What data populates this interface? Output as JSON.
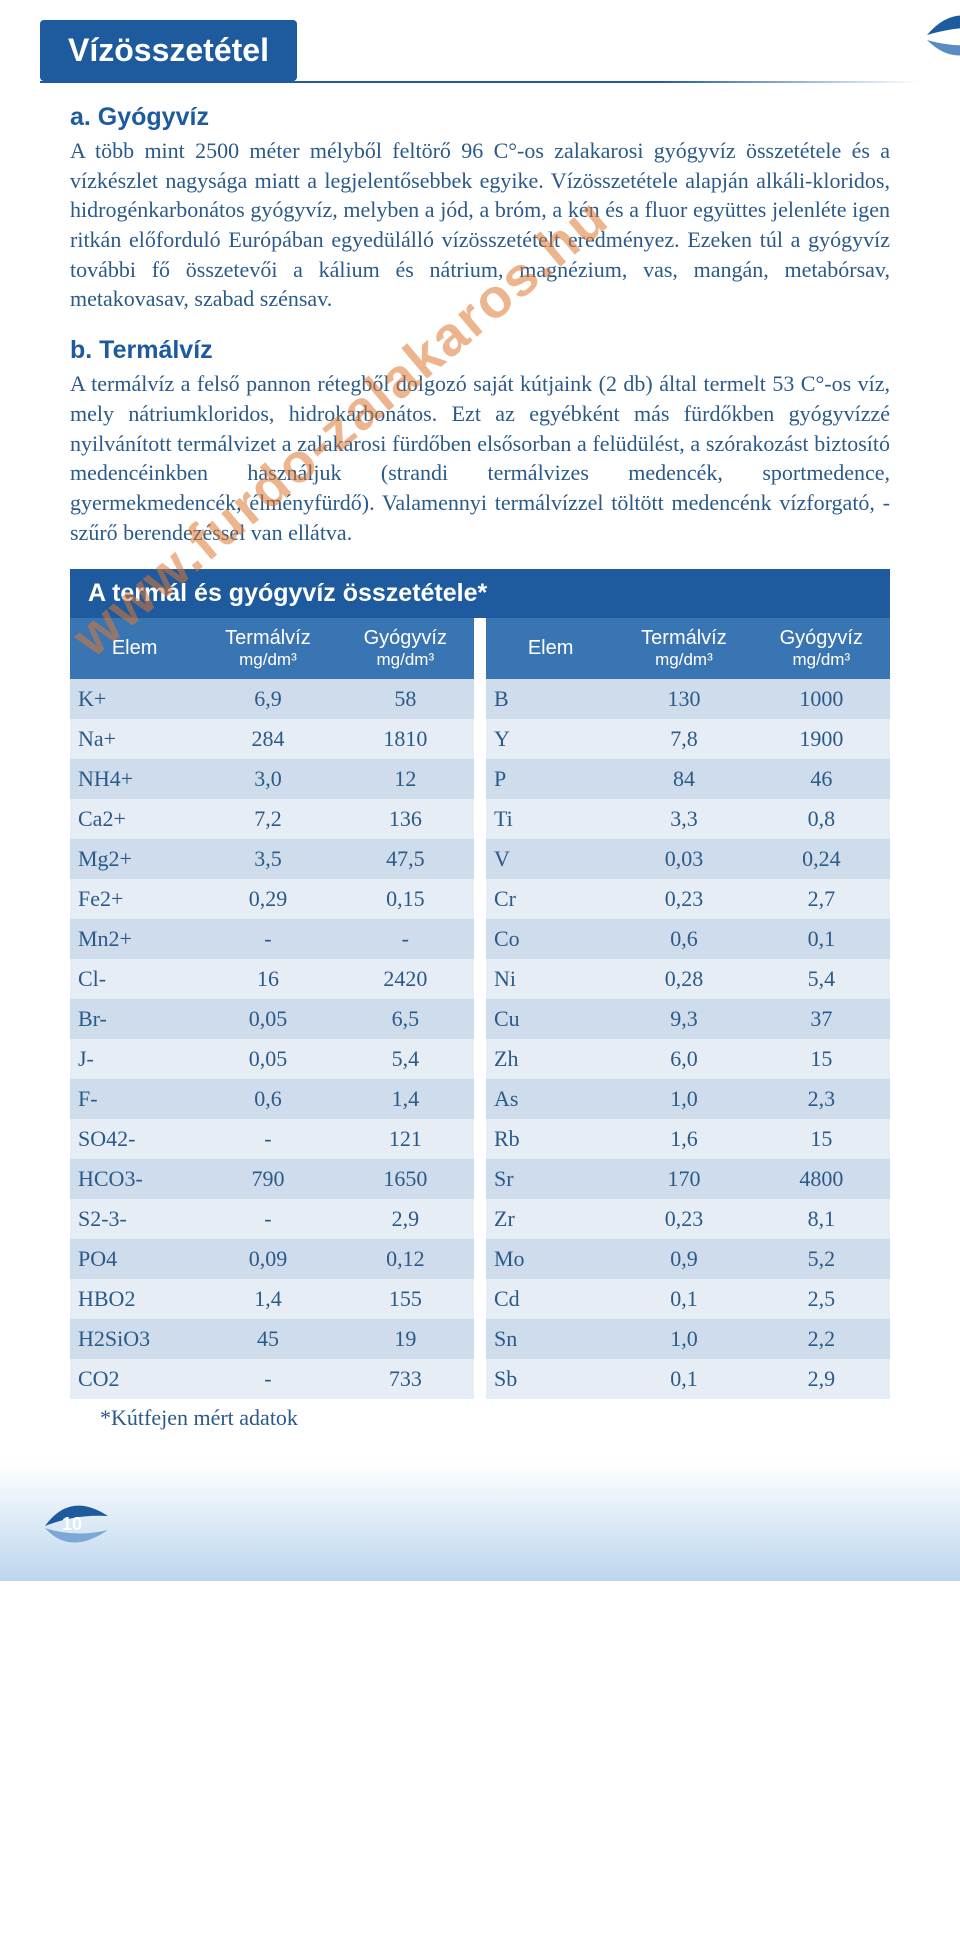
{
  "page_title": "Vízösszetétel",
  "watermark_text": "www.furdo-zalakaros.hu",
  "page_number": "10",
  "sections": {
    "a": {
      "heading": "a. Gyógyvíz",
      "text": "A több mint 2500 méter mélyből feltörő 96 C°-os zalakarosi gyógyvíz összetétele és a vízkészlet nagysága miatt a legjelentősebbek egyike. Vízösszetétele alapján alkáli-kloridos, hidrogénkarbonátos gyógyvíz, melyben a jód, a bróm, a kén és a fluor együttes jelenléte igen ritkán előforduló Európában egyedülálló vízösszetételt eredményez. Ezeken túl a gyógyvíz további fő összetevői a kálium és nátrium, magnézium, vas, mangán, metabórsav, metakovasav, szabad szénsav."
    },
    "b": {
      "heading": "b. Termálvíz",
      "text": "A termálvíz a felső pannon rétegből dolgozó saját kútjaink (2 db) által termelt 53 C°-os víz, mely nátriumkloridos, hidrokarbonátos. Ezt az egyébként más fürdőkben gyógyvízzé nyilvánított termálvizet a zalakarosi fürdőben elsősorban a felüdülést, a szórakozást biztosító medencéinkben használjuk (strandi termálvizes medencék, sportmedence, gyermekmedencék, élményfürdő). Valamennyi termálvízzel töltött medencénk vízforgató, -szűrő berendezéssel van ellátva."
    }
  },
  "table": {
    "title": "A termál és gyógyvíz összetétele*",
    "col_headers": {
      "elem": "Elem",
      "termal": "Termálvíz",
      "gyogy": "Gyógyvíz",
      "unit": "mg/dm³"
    },
    "left_rows": [
      {
        "e": "K+",
        "t": "6,9",
        "g": "58"
      },
      {
        "e": "Na+",
        "t": "284",
        "g": "1810"
      },
      {
        "e": "NH4+",
        "t": "3,0",
        "g": "12"
      },
      {
        "e": "Ca2+",
        "t": "7,2",
        "g": "136"
      },
      {
        "e": "Mg2+",
        "t": "3,5",
        "g": "47,5"
      },
      {
        "e": "Fe2+",
        "t": "0,29",
        "g": "0,15"
      },
      {
        "e": "Mn2+",
        "t": "-",
        "g": "-"
      },
      {
        "e": "Cl-",
        "t": "16",
        "g": "2420"
      },
      {
        "e": "Br-",
        "t": "0,05",
        "g": "6,5"
      },
      {
        "e": "J-",
        "t": "0,05",
        "g": "5,4"
      },
      {
        "e": "F-",
        "t": "0,6",
        "g": "1,4"
      },
      {
        "e": "SO42-",
        "t": "-",
        "g": "121"
      },
      {
        "e": "HCO3-",
        "t": "790",
        "g": "1650"
      },
      {
        "e": "S2-3-",
        "t": "-",
        "g": "2,9"
      },
      {
        "e": "PO4",
        "t": "0,09",
        "g": "0,12"
      },
      {
        "e": "HBO2",
        "t": "1,4",
        "g": "155"
      },
      {
        "e": "H2SiO3",
        "t": "45",
        "g": "19"
      },
      {
        "e": "CO2",
        "t": "-",
        "g": "733"
      }
    ],
    "right_rows": [
      {
        "e": "B",
        "t": "130",
        "g": "1000"
      },
      {
        "e": "Y",
        "t": "7,8",
        "g": "1900"
      },
      {
        "e": "P",
        "t": "84",
        "g": "46"
      },
      {
        "e": "Ti",
        "t": "3,3",
        "g": "0,8"
      },
      {
        "e": "V",
        "t": "0,03",
        "g": "0,24"
      },
      {
        "e": "Cr",
        "t": "0,23",
        "g": "2,7"
      },
      {
        "e": "Co",
        "t": "0,6",
        "g": "0,1"
      },
      {
        "e": "Ni",
        "t": "0,28",
        "g": "5,4"
      },
      {
        "e": "Cu",
        "t": "9,3",
        "g": "37"
      },
      {
        "e": "Zh",
        "t": "6,0",
        "g": "15"
      },
      {
        "e": "As",
        "t": "1,0",
        "g": "2,3"
      },
      {
        "e": "Rb",
        "t": "1,6",
        "g": "15"
      },
      {
        "e": "Sr",
        "t": "170",
        "g": "4800"
      },
      {
        "e": "Zr",
        "t": "0,23",
        "g": "8,1"
      },
      {
        "e": "Mo",
        "t": "0,9",
        "g": "5,2"
      },
      {
        "e": "Cd",
        "t": "0,1",
        "g": "2,5"
      },
      {
        "e": "Sn",
        "t": "1,0",
        "g": "2,2"
      },
      {
        "e": "Sb",
        "t": "0,1",
        "g": "2,9"
      }
    ],
    "footnote": "*Kútfejen mért adatok"
  },
  "colors": {
    "header_bg": "#1e5a9e",
    "th_bg": "#3a75b3",
    "row_odd": "#cfdceb",
    "row_even": "#e7edf5",
    "text": "#2a5a8a",
    "watermark": "rgba(220,120,50,0.55)"
  }
}
